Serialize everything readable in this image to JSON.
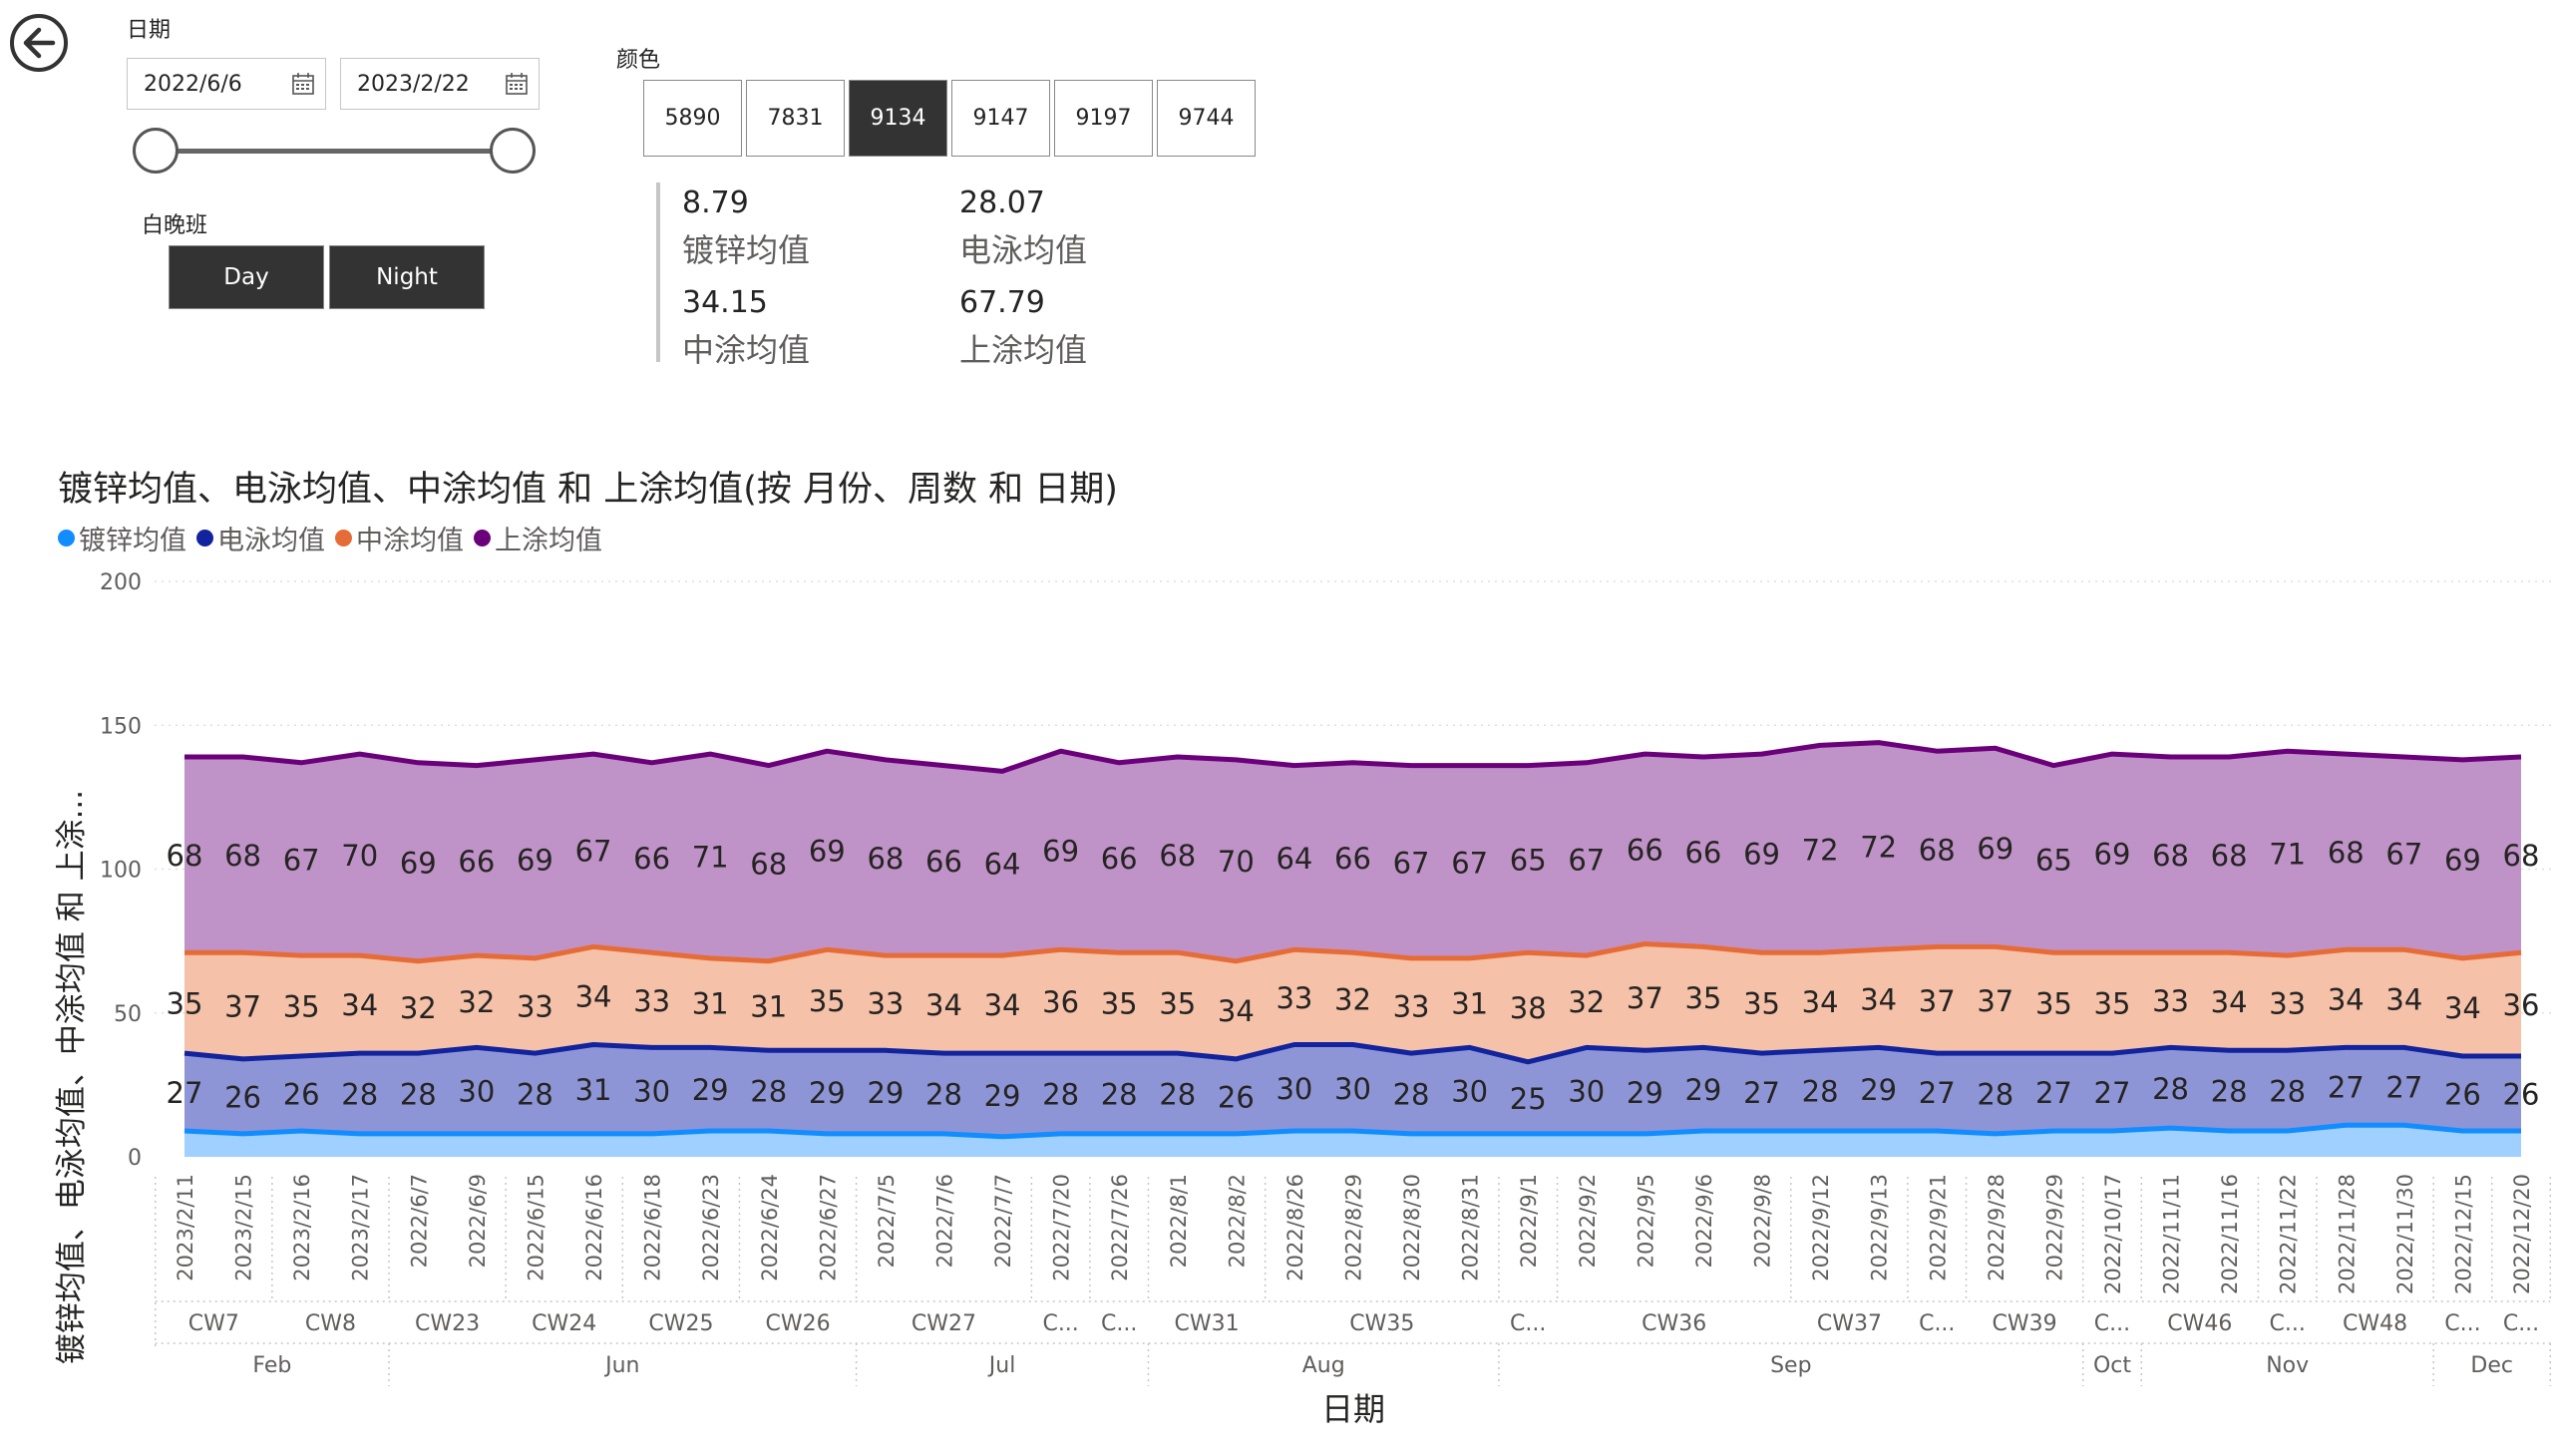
{
  "filters": {
    "date_label": "日期",
    "start_date": "2022/6/6",
    "end_date": "2023/2/22",
    "shift_label": "白晚班",
    "shift_options": [
      "Day",
      "Night"
    ],
    "color_label": "颜色",
    "color_options": [
      "5890",
      "7831",
      "9134",
      "9147",
      "9197",
      "9744"
    ],
    "selected_color": "9134"
  },
  "kpis": [
    {
      "value": "8.79",
      "label": "镀锌均值"
    },
    {
      "value": "28.07",
      "label": "电泳均值"
    },
    {
      "value": "34.15",
      "label": "中涂均值"
    },
    {
      "value": "67.79",
      "label": "上涂均值"
    }
  ],
  "colors": {
    "galv": "#118DFF",
    "ecoat": "#12239E",
    "mid": "#E66C37",
    "top": "#6B007B"
  },
  "chart_data": {
    "type": "area",
    "stacked": true,
    "title": "镀锌均值、电泳均值、中涂均值 和 上涂均值(按 月份、周数 和 日期)",
    "xlabel": "日期",
    "ylabel": "镀锌均值、电泳均值、中涂均值 和 上涂...",
    "ylim": [
      0,
      200
    ],
    "yticks": [
      0,
      50,
      100,
      150,
      200
    ],
    "legend_position": "top-left",
    "grid": true,
    "x": [
      "2023/2/11",
      "2023/2/15",
      "2023/2/16",
      "2023/2/17",
      "2022/6/7",
      "2022/6/9",
      "2022/6/15",
      "2022/6/16",
      "2022/6/18",
      "2022/6/23",
      "2022/6/24",
      "2022/6/27",
      "2022/7/5",
      "2022/7/6",
      "2022/7/7",
      "2022/7/20",
      "2022/7/26",
      "2022/8/1",
      "2022/8/2",
      "2022/8/26",
      "2022/8/29",
      "2022/8/30",
      "2022/8/31",
      "2022/9/1",
      "2022/9/2",
      "2022/9/5",
      "2022/9/6",
      "2022/9/8",
      "2022/9/12",
      "2022/9/13",
      "2022/9/21",
      "2022/9/28",
      "2022/9/29",
      "2022/10/17",
      "2022/11/11",
      "2022/11/16",
      "2022/11/22",
      "2022/11/28",
      "2022/11/30",
      "2022/12/15",
      "2022/12/20"
    ],
    "week_groups": [
      {
        "label": "CW7",
        "count": 2
      },
      {
        "label": "CW8",
        "count": 2
      },
      {
        "label": "CW23",
        "count": 2
      },
      {
        "label": "CW24",
        "count": 2
      },
      {
        "label": "CW25",
        "count": 2
      },
      {
        "label": "CW26",
        "count": 2
      },
      {
        "label": "CW27",
        "count": 3
      },
      {
        "label": "C...",
        "count": 1
      },
      {
        "label": "C...",
        "count": 1
      },
      {
        "label": "CW31",
        "count": 2
      },
      {
        "label": "CW35",
        "count": 4
      },
      {
        "label": "C...",
        "count": 1
      },
      {
        "label": "CW36",
        "count": 4
      },
      {
        "label": "CW37",
        "count": 2
      },
      {
        "label": "C...",
        "count": 1
      },
      {
        "label": "CW39",
        "count": 2
      },
      {
        "label": "C...",
        "count": 1
      },
      {
        "label": "CW46",
        "count": 2
      },
      {
        "label": "C...",
        "count": 1
      },
      {
        "label": "CW48",
        "count": 2
      },
      {
        "label": "C...",
        "count": 1
      },
      {
        "label": "C...",
        "count": 1
      }
    ],
    "month_groups": [
      {
        "label": "Feb",
        "count": 4
      },
      {
        "label": "Jun",
        "count": 8
      },
      {
        "label": "Jul",
        "count": 5
      },
      {
        "label": "Aug",
        "count": 6
      },
      {
        "label": "Sep",
        "count": 10
      },
      {
        "label": "Oct",
        "count": 1
      },
      {
        "label": "Nov",
        "count": 5
      },
      {
        "label": "Dec",
        "count": 2
      }
    ],
    "series": [
      {
        "name": "镀锌均值",
        "values": [
          9,
          8,
          9,
          8,
          8,
          8,
          8,
          8,
          8,
          9,
          9,
          8,
          8,
          8,
          7,
          8,
          8,
          8,
          8,
          9,
          9,
          8,
          8,
          8,
          8,
          8,
          9,
          9,
          9,
          9,
          9,
          8,
          9,
          9,
          10,
          9,
          9,
          11,
          11,
          9,
          9
        ]
      },
      {
        "name": "电泳均值",
        "values": [
          27,
          26,
          26,
          28,
          28,
          30,
          28,
          31,
          30,
          29,
          28,
          29,
          29,
          28,
          29,
          28,
          28,
          28,
          26,
          30,
          30,
          28,
          30,
          25,
          30,
          29,
          29,
          27,
          28,
          29,
          27,
          28,
          27,
          27,
          28,
          28,
          28,
          27,
          27,
          26,
          26
        ]
      },
      {
        "name": "中涂均值",
        "values": [
          35,
          37,
          35,
          34,
          32,
          32,
          33,
          34,
          33,
          31,
          31,
          35,
          33,
          34,
          34,
          36,
          35,
          35,
          34,
          33,
          32,
          33,
          31,
          38,
          32,
          37,
          35,
          35,
          34,
          34,
          37,
          37,
          35,
          35,
          33,
          34,
          33,
          34,
          34,
          34,
          36
        ]
      },
      {
        "name": "上涂均值",
        "values": [
          68,
          68,
          67,
          70,
          69,
          66,
          69,
          67,
          66,
          71,
          68,
          69,
          68,
          66,
          64,
          69,
          66,
          68,
          70,
          64,
          66,
          67,
          67,
          65,
          67,
          66,
          66,
          69,
          72,
          72,
          68,
          69,
          65,
          69,
          68,
          68,
          71,
          68,
          67,
          69,
          68
        ]
      }
    ]
  }
}
